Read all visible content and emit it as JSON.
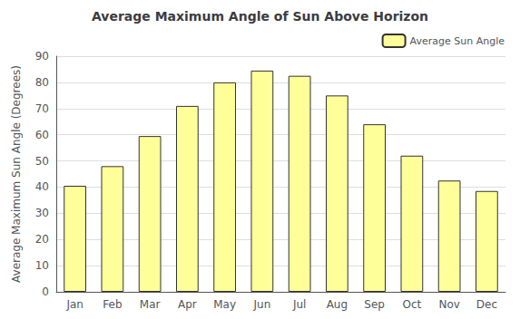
{
  "chart_data": {
    "type": "bar",
    "title": "Average Maximum Angle of Sun Above Horizon",
    "ylabel": "Average Maximum Sun Angle (Degrees)",
    "categories": [
      "Jan",
      "Feb",
      "Mar",
      "Apr",
      "May",
      "Jun",
      "Jul",
      "Aug",
      "Sep",
      "Oct",
      "Nov",
      "Dec"
    ],
    "series": [
      {
        "name": "Average Sun Angle",
        "color": "#ffff99",
        "values": [
          40.5,
          48.0,
          59.5,
          71.0,
          80.0,
          84.5,
          82.5,
          75.0,
          64.0,
          52.0,
          42.5,
          38.5
        ]
      }
    ],
    "ylim": [
      0,
      90
    ],
    "yticks": [
      0,
      10,
      20,
      30,
      40,
      50,
      60,
      70,
      80,
      90
    ],
    "grid": true,
    "legend": "upper right"
  }
}
